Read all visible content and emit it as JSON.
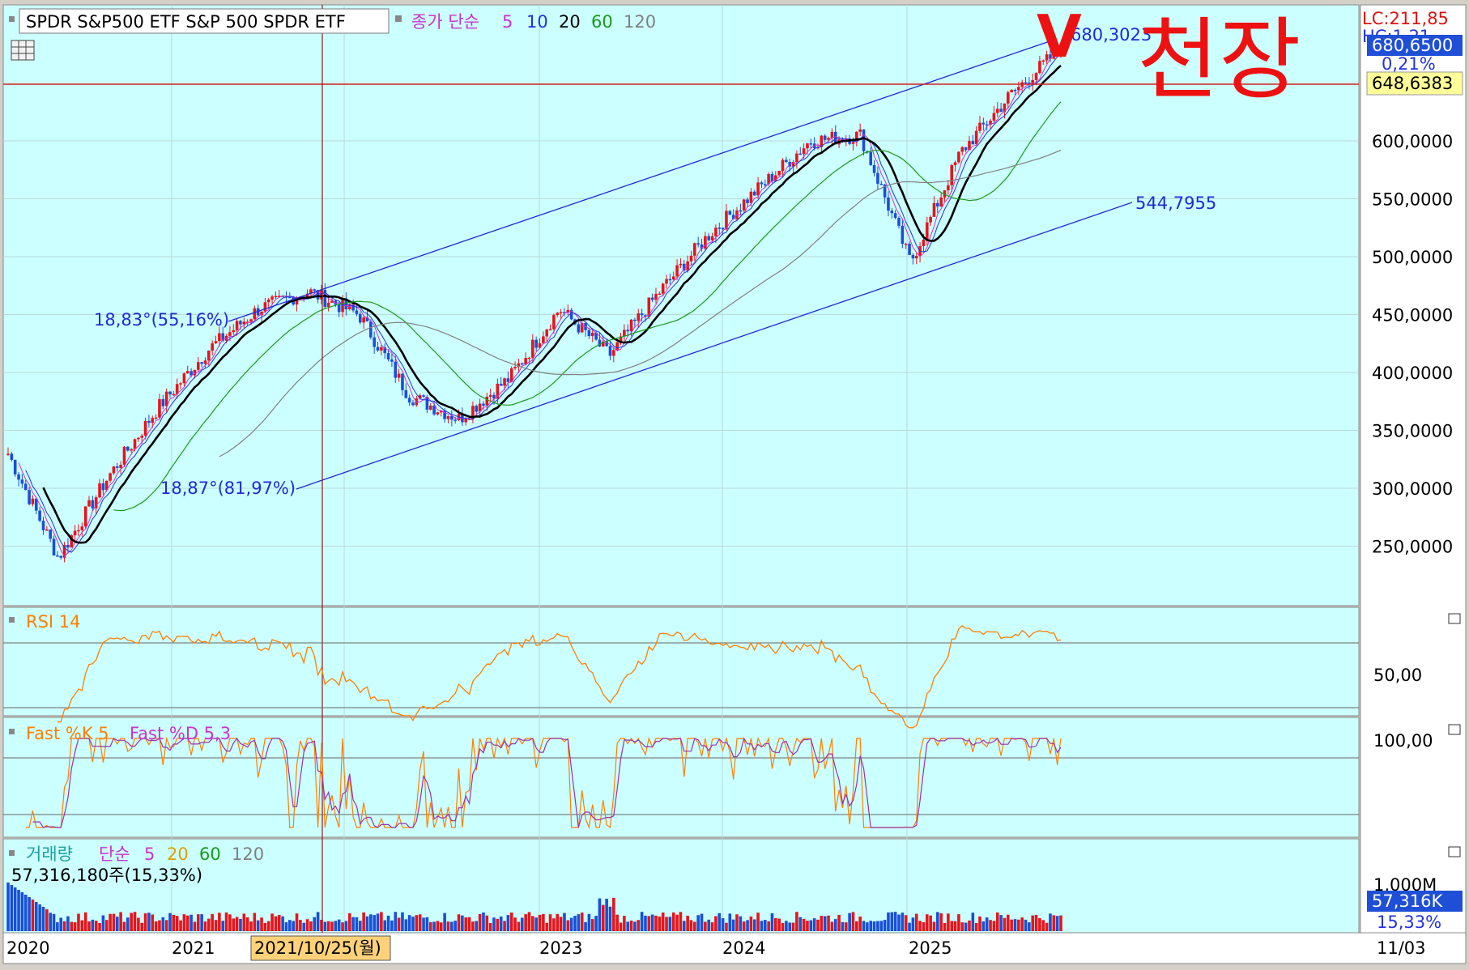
{
  "window": {
    "title": "SPDR S&P500 ETF  S&P 500 SPDR ETF"
  },
  "price_panel": {
    "ma_legend": {
      "label": "종가 단순",
      "periods": [
        "5",
        "10",
        "20",
        "60",
        "120"
      ]
    },
    "lc_label": "LC:211,85",
    "hc_label": "HC:1,21",
    "current_price_badge": "680,6500",
    "pct_change": "0,21%",
    "hline_value_badge": "648,6383",
    "y_ticks": [
      "600,0000",
      "550,0000",
      "500,0000",
      "450,0000",
      "400,0000",
      "350,0000",
      "300,0000",
      "250,0000"
    ],
    "channel_upper_label": "680,3023",
    "channel_lower_label": "544,7955",
    "angle_label_upper": "18,83°(55,16%)",
    "angle_label_lower": "18,87°(81,97%)",
    "annotation_v": "V",
    "annotation_text": "천장"
  },
  "rsi_panel": {
    "label": "RSI 14",
    "ticks": [
      "50,00"
    ]
  },
  "stoch_panel": {
    "label_k": "Fast %K 5",
    "label_d": "Fast %D 5,3",
    "ticks": [
      "100,00"
    ]
  },
  "volume_panel": {
    "legend_label": "거래량",
    "ma_label": "단순",
    "periods": [
      "5",
      "20",
      "60",
      "120"
    ],
    "volume_text": "57,316,180주(15,33%)",
    "tick_1000m": "1,000M",
    "volume_badge": "57,316K",
    "pct_badge": "15,33%"
  },
  "x_axis": {
    "labels": [
      "2020",
      "2021",
      "2023",
      "2024",
      "2025"
    ],
    "crosshair_date": "2021/10/25(월)",
    "right_label": "11/03"
  },
  "colors": {
    "chart_bg": "#ccffff",
    "up": "#e8141b",
    "down": "#1a4fd6",
    "channel": "#1e2ad6",
    "ma5": "#cc33cc",
    "ma20": "#000000",
    "ma60": "#1a9a1a",
    "ma120": "#808080",
    "annotation": "#ee1111"
  },
  "chart_data": {
    "type": "candlestick",
    "title": "SPDR S&P500 ETF  S&P 500 SPDR ETF",
    "x": [
      "2020-01",
      "2020-03",
      "2020-06",
      "2020-12",
      "2021-06",
      "2021-10",
      "2021-12",
      "2022-01",
      "2022-06",
      "2022-10",
      "2023-01",
      "2023-07",
      "2023-10",
      "2023-12",
      "2024-03",
      "2024-07",
      "2024-12",
      "2025-02",
      "2025-04",
      "2025-06",
      "2025-08",
      "2025-11"
    ],
    "close_approx": [
      330,
      240,
      310,
      370,
      420,
      455,
      470,
      450,
      380,
      360,
      395,
      455,
      415,
      470,
      520,
      560,
      600,
      605,
      495,
      590,
      640,
      680
    ],
    "last_close": 680.65,
    "horizontal_line": 648.6383,
    "channel_upper_end": 680.3023,
    "channel_lower_end": 544.7955,
    "ylim": [
      210,
      700
    ],
    "moving_averages": [
      "5",
      "10",
      "20",
      "60",
      "120"
    ],
    "indicators": [
      "RSI 14",
      "Fast %K 5",
      "Fast %D 5,3",
      "거래량"
    ]
  }
}
